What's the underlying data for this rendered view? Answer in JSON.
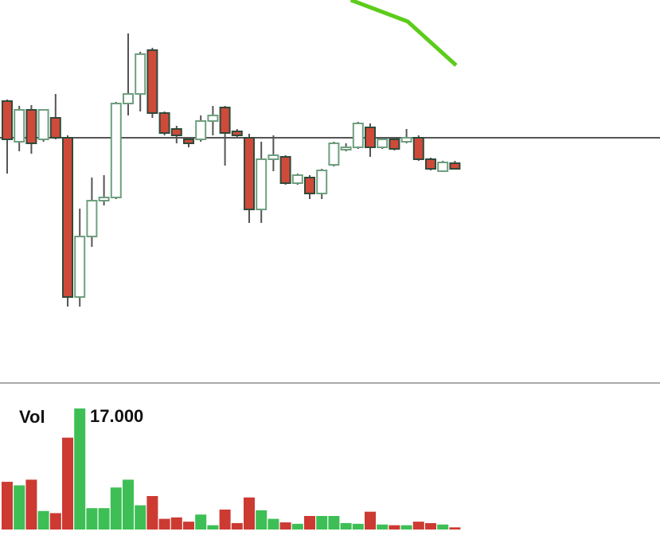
{
  "chart_data": [
    {
      "type": "candlestick",
      "up_color": "#6f9f7f",
      "down_color": "#d04a3a",
      "wick_color": "#555555",
      "ylim": [
        0,
        480
      ],
      "hline": 307,
      "open": [
        353,
        302,
        342,
        305,
        332,
        307,
        107,
        183,
        228,
        232,
        350,
        362,
        417,
        338,
        318,
        305,
        305,
        328,
        345,
        315,
        307,
        217,
        280,
        283,
        250,
        257,
        237,
        273,
        292,
        295,
        320,
        295,
        305,
        302,
        307,
        280,
        265,
        275
      ],
      "close": [
        305,
        342,
        300,
        342,
        307,
        107,
        183,
        228,
        232,
        350,
        362,
        412,
        338,
        313,
        310,
        300,
        328,
        335,
        313,
        310,
        217,
        280,
        285,
        250,
        260,
        237,
        266,
        300,
        295,
        325,
        295,
        305,
        293,
        307,
        280,
        268,
        276,
        268
      ],
      "high": [
        355,
        347,
        348,
        343,
        362,
        310,
        218,
        257,
        260,
        352,
        438,
        415,
        420,
        340,
        322,
        308,
        335,
        347,
        347,
        318,
        312,
        302,
        310,
        285,
        262,
        260,
        268,
        302,
        300,
        327,
        325,
        307,
        307,
        318,
        310,
        282,
        278,
        278
      ],
      "low": [
        262,
        290,
        287,
        302,
        305,
        95,
        95,
        170,
        222,
        230,
        335,
        340,
        332,
        310,
        300,
        295,
        302,
        310,
        272,
        308,
        200,
        200,
        265,
        248,
        248,
        230,
        230,
        271,
        290,
        293,
        283,
        293,
        291,
        300,
        278,
        266,
        264,
        267
      ],
      "line": {
        "color": "#5ccc1a",
        "x": [
          28.4,
          33.1,
          37.1
        ],
        "values": [
          480,
          453,
          398
        ]
      }
    },
    {
      "type": "bar",
      "title": "Vol",
      "up_color": "#3dbf55",
      "down_color": "#cc3a32",
      "ylim": [
        0,
        17
      ],
      "yticks": [
        {
          "value": 17,
          "label": "17.000"
        }
      ],
      "values": [
        6.7,
        6.2,
        7.0,
        2.6,
        2.3,
        12.9,
        17,
        3.0,
        3.0,
        5.9,
        7.0,
        3.4,
        4.7,
        1.5,
        1.7,
        1.1,
        2.1,
        0.6,
        2.8,
        0.9,
        4.5,
        2.7,
        1.5,
        1.0,
        0.8,
        1.9,
        1.9,
        1.9,
        0.9,
        0.8,
        2.5,
        0.7,
        0.6,
        0.6,
        1.1,
        0.9,
        0.7,
        0.3
      ]
    }
  ]
}
